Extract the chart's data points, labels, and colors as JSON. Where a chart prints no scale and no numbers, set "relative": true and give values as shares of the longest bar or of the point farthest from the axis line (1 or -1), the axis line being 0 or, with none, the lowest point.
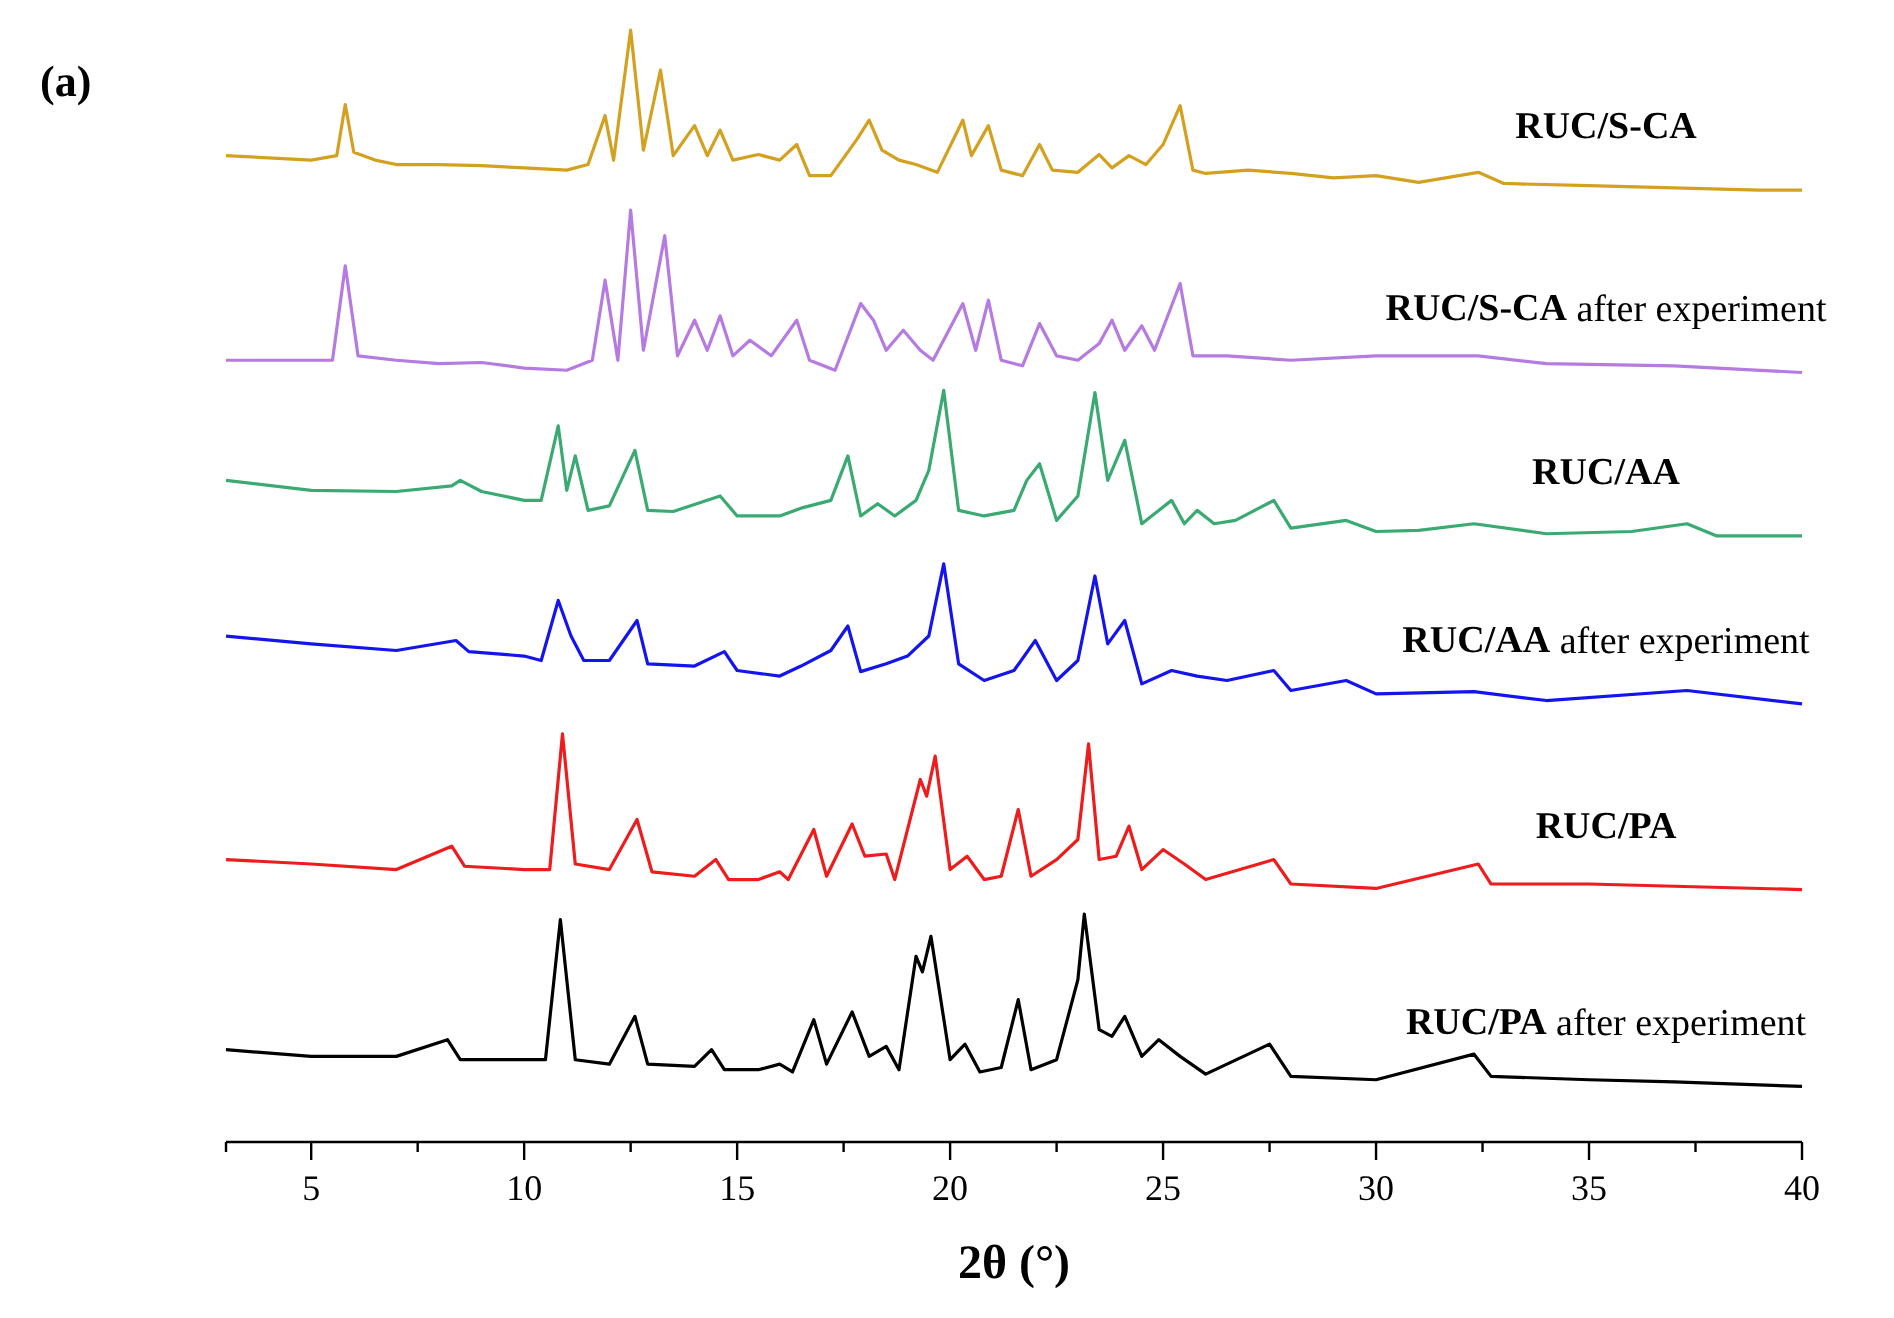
{
  "chart_data": {
    "type": "line",
    "xlabel": "2θ (°)",
    "annotations": [
      "(a)"
    ],
    "relative": true,
    "xlim": [
      3,
      40
    ],
    "xticks": [
      {
        "value": 3,
        "label": null
      },
      5,
      {
        "value": 7.5,
        "label": null
      },
      10,
      {
        "value": 12.5,
        "label": null
      },
      15,
      {
        "value": 17.5,
        "label": null
      },
      20,
      {
        "value": 22.5,
        "label": null
      },
      25,
      {
        "value": 27.5,
        "label": null
      },
      30,
      {
        "value": 32.5,
        "label": null
      },
      35,
      {
        "value": 37.5,
        "label": null
      },
      40
    ],
    "series": [
      {
        "name": "RUC/S-CA",
        "color": "#d4a020",
        "x": [
          3,
          5,
          5.6,
          5.8,
          6.0,
          6.5,
          7,
          8,
          9,
          10,
          11,
          11.5,
          11.9,
          12.1,
          12.5,
          12.8,
          13.2,
          13.5,
          14,
          14.3,
          14.6,
          14.9,
          15.5,
          16,
          16.4,
          16.7,
          17.2,
          17.8,
          18.1,
          18.4,
          18.8,
          19.2,
          19.7,
          20.3,
          20.5,
          20.9,
          21.2,
          21.7,
          22.1,
          22.4,
          23,
          23.5,
          23.8,
          24.2,
          24.6,
          25.0,
          25.4,
          25.7,
          26,
          27,
          28,
          29,
          30,
          31,
          32.4,
          33,
          35,
          37,
          39,
          40
        ],
        "values": [
          0.887,
          0.883,
          0.887,
          0.933,
          0.89,
          0.883,
          0.879,
          0.879,
          0.878,
          0.876,
          0.874,
          0.879,
          0.923,
          0.883,
          1,
          0.892,
          0.964,
          0.887,
          0.914,
          0.887,
          0.91,
          0.883,
          0.888,
          0.883,
          0.897,
          0.869,
          0.869,
          0.901,
          0.919,
          0.892,
          0.883,
          0.879,
          0.872,
          0.919,
          0.887,
          0.914,
          0.874,
          0.869,
          0.897,
          0.874,
          0.872,
          0.888,
          0.876,
          0.887,
          0.879,
          0.897,
          0.932,
          0.874,
          0.871,
          0.874,
          0.871,
          0.867,
          0.869,
          0.863,
          0.872,
          0.862,
          0.86,
          0.858,
          0.856,
          0.856
        ]
      },
      {
        "name": "RUC/S-CA after experiment",
        "color": "#b57be0",
        "x": [
          3,
          5.5,
          5.8,
          6.1,
          7,
          8,
          9,
          10,
          11,
          11.6,
          11.9,
          12.2,
          12.5,
          12.8,
          13.3,
          13.6,
          14,
          14.3,
          14.6,
          14.9,
          15.3,
          15.8,
          16.4,
          16.7,
          17.3,
          17.9,
          18.2,
          18.5,
          18.9,
          19.3,
          19.6,
          20.3,
          20.6,
          20.9,
          21.2,
          21.7,
          22.1,
          22.5,
          23,
          23.5,
          23.8,
          24.1,
          24.5,
          24.8,
          25.4,
          25.7,
          26.5,
          28,
          30,
          32.4,
          34,
          37,
          40
        ],
        "values": [
          0.703,
          0.703,
          0.788,
          0.707,
          0.703,
          0.7,
          0.701,
          0.696,
          0.694,
          0.703,
          0.775,
          0.703,
          0.838,
          0.712,
          0.815,
          0.707,
          0.739,
          0.712,
          0.743,
          0.707,
          0.721,
          0.707,
          0.739,
          0.703,
          0.694,
          0.754,
          0.739,
          0.712,
          0.73,
          0.712,
          0.703,
          0.754,
          0.712,
          0.757,
          0.703,
          0.698,
          0.736,
          0.707,
          0.703,
          0.718,
          0.739,
          0.712,
          0.734,
          0.712,
          0.772,
          0.707,
          0.707,
          0.703,
          0.707,
          0.707,
          0.7,
          0.698,
          0.692
        ]
      },
      {
        "name": "RUC/AA",
        "color": "#3aaa72",
        "x": [
          3,
          5,
          7,
          8.3,
          8.5,
          9,
          10,
          10.4,
          10.8,
          11.0,
          11.2,
          11.5,
          12,
          12.6,
          12.9,
          13.5,
          14.6,
          15,
          16,
          16.5,
          17.2,
          17.6,
          17.9,
          18.3,
          18.7,
          19.2,
          19.5,
          19.85,
          20.2,
          20.8,
          21.5,
          21.8,
          22.1,
          22.5,
          23,
          23.4,
          23.7,
          24.1,
          24.5,
          25.2,
          25.5,
          25.8,
          26.2,
          26.7,
          27.6,
          28,
          29.3,
          30,
          31,
          32.3,
          34,
          36,
          37.3,
          38,
          40
        ],
        "values": [
          0.595,
          0.586,
          0.585,
          0.59,
          0.595,
          0.585,
          0.577,
          0.577,
          0.644,
          0.586,
          0.617,
          0.568,
          0.572,
          0.622,
          0.568,
          0.567,
          0.581,
          0.563,
          0.563,
          0.57,
          0.577,
          0.617,
          0.563,
          0.574,
          0.563,
          0.577,
          0.604,
          0.676,
          0.568,
          0.563,
          0.568,
          0.595,
          0.61,
          0.559,
          0.581,
          0.674,
          0.595,
          0.631,
          0.556,
          0.577,
          0.556,
          0.568,
          0.556,
          0.559,
          0.577,
          0.552,
          0.559,
          0.549,
          0.55,
          0.556,
          0.547,
          0.549,
          0.556,
          0.545,
          0.545
        ]
      },
      {
        "name": "RUC/AA after experiment",
        "color": "#1414ee",
        "x": [
          3,
          5,
          7,
          8.4,
          8.7,
          10,
          10.4,
          10.8,
          11.1,
          11.4,
          12,
          12.65,
          12.9,
          14,
          14.7,
          15,
          16,
          16.5,
          17.2,
          17.6,
          17.9,
          18.5,
          19,
          19.5,
          19.85,
          20.2,
          20.8,
          21.5,
          22,
          22.5,
          23,
          23.4,
          23.7,
          24.1,
          24.5,
          25.2,
          25.8,
          26.5,
          27.6,
          28,
          29.3,
          30,
          32.3,
          34,
          37.3,
          40
        ],
        "values": [
          0.455,
          0.448,
          0.442,
          0.451,
          0.441,
          0.437,
          0.433,
          0.487,
          0.455,
          0.433,
          0.433,
          0.469,
          0.43,
          0.428,
          0.441,
          0.424,
          0.419,
          0.428,
          0.442,
          0.464,
          0.423,
          0.43,
          0.437,
          0.455,
          0.52,
          0.43,
          0.415,
          0.424,
          0.451,
          0.415,
          0.433,
          0.509,
          0.448,
          0.469,
          0.412,
          0.424,
          0.419,
          0.415,
          0.424,
          0.406,
          0.415,
          0.403,
          0.405,
          0.397,
          0.406,
          0.394
        ]
      },
      {
        "name": "RUC/PA",
        "color": "#ee1c1c",
        "x": [
          3,
          5,
          7,
          8.3,
          8.6,
          10,
          10.6,
          10.9,
          11.2,
          12,
          12.65,
          13,
          14,
          14.5,
          14.8,
          15.5,
          16,
          16.2,
          16.8,
          17.1,
          17.7,
          18,
          18.5,
          18.7,
          19.3,
          19.45,
          19.65,
          20,
          20.4,
          20.8,
          21.2,
          21.6,
          21.9,
          22.5,
          23,
          23.25,
          23.5,
          23.9,
          24.2,
          24.5,
          25.0,
          25.5,
          26,
          27.6,
          28,
          30,
          32.4,
          32.7,
          35,
          37,
          40
        ],
        "values": [
          0.254,
          0.25,
          0.245,
          0.266,
          0.248,
          0.245,
          0.245,
          0.367,
          0.25,
          0.245,
          0.29,
          0.243,
          0.239,
          0.254,
          0.236,
          0.236,
          0.243,
          0.236,
          0.281,
          0.239,
          0.286,
          0.257,
          0.259,
          0.236,
          0.326,
          0.311,
          0.347,
          0.245,
          0.257,
          0.236,
          0.239,
          0.299,
          0.239,
          0.254,
          0.272,
          0.358,
          0.254,
          0.257,
          0.284,
          0.245,
          0.263,
          0.25,
          0.236,
          0.254,
          0.232,
          0.228,
          0.25,
          0.232,
          0.232,
          0.23,
          0.227
        ]
      },
      {
        "name": "RUC/PA after experiment",
        "color": "#000000",
        "x": [
          3,
          5,
          7,
          8.2,
          8.5,
          10,
          10.5,
          10.85,
          11.2,
          12,
          12.6,
          12.9,
          14,
          14.4,
          14.7,
          15.5,
          16,
          16.3,
          16.8,
          17.1,
          17.7,
          18.1,
          18.5,
          18.8,
          19.2,
          19.35,
          19.55,
          20,
          20.35,
          20.7,
          21.2,
          21.6,
          21.9,
          22.5,
          23,
          23.15,
          23.5,
          23.8,
          24.1,
          24.5,
          24.9,
          25.4,
          26,
          27.5,
          28,
          30,
          32.3,
          32.7,
          35,
          37,
          40
        ],
        "values": [
          0.083,
          0.077,
          0.077,
          0.092,
          0.074,
          0.074,
          0.074,
          0.2,
          0.074,
          0.07,
          0.113,
          0.07,
          0.068,
          0.083,
          0.065,
          0.065,
          0.07,
          0.063,
          0.11,
          0.07,
          0.117,
          0.077,
          0.086,
          0.065,
          0.167,
          0.153,
          0.185,
          0.074,
          0.088,
          0.063,
          0.067,
          0.128,
          0.065,
          0.074,
          0.146,
          0.205,
          0.101,
          0.095,
          0.113,
          0.077,
          0.092,
          0.077,
          0.061,
          0.088,
          0.059,
          0.056,
          0.079,
          0.059,
          0.056,
          0.054,
          0.05
        ]
      }
    ]
  }
}
